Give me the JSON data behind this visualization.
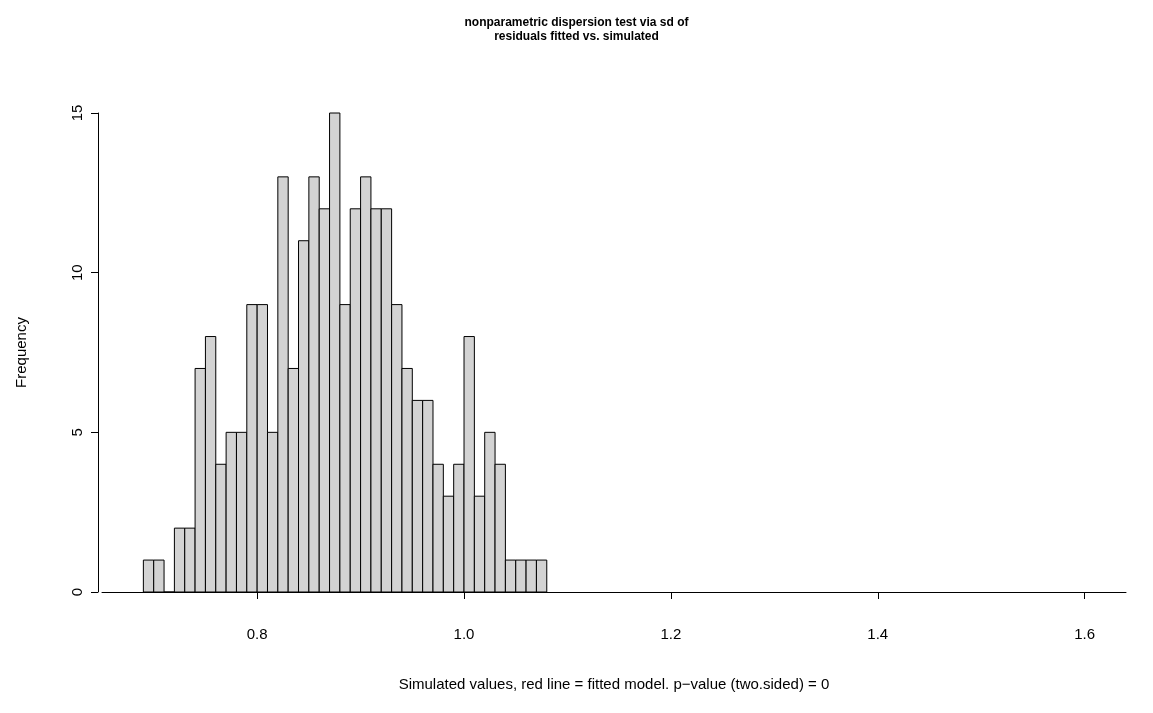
{
  "chart_data": {
    "type": "histogram",
    "title": "nonparametric dispersion test via sd of\nresiduals fitted vs. simulated",
    "xlabel": "Simulated values, red line = fitted model. p−value (two.sided) = 0",
    "ylabel": "Frequency",
    "bins": [
      0.69,
      0.7,
      0.71,
      0.72,
      0.73,
      0.74,
      0.75,
      0.76,
      0.77,
      0.78,
      0.79,
      0.8,
      0.81,
      0.82,
      0.83,
      0.84,
      0.85,
      0.86,
      0.87,
      0.88,
      0.89,
      0.9,
      0.91,
      0.92,
      0.93,
      0.94,
      0.95,
      0.96,
      0.97,
      0.98,
      0.99,
      1.0,
      1.01,
      1.02,
      1.03,
      1.04,
      1.05,
      1.06,
      1.07,
      1.08
    ],
    "values": [
      1,
      1,
      0,
      2,
      2,
      7,
      8,
      4,
      5,
      5,
      9,
      9,
      5,
      13,
      7,
      11,
      13,
      12,
      15,
      9,
      12,
      13,
      12,
      12,
      9,
      7,
      6,
      6,
      4,
      3,
      4,
      8,
      3,
      5,
      4,
      1,
      1,
      1,
      1
    ],
    "color": "#d3d3d3",
    "xlim": [
      0.65,
      1.64
    ],
    "xticks": [
      {
        "value": 0.8,
        "label": "0.8"
      },
      {
        "value": 1.0,
        "label": "1.0"
      },
      {
        "value": 1.2,
        "label": "1.2"
      },
      {
        "value": 1.4,
        "label": "1.4"
      },
      {
        "value": 1.6,
        "label": "1.6"
      }
    ],
    "ylim": [
      0,
      15
    ],
    "yticks": [
      0,
      5,
      10,
      15
    ],
    "grid": false
  }
}
